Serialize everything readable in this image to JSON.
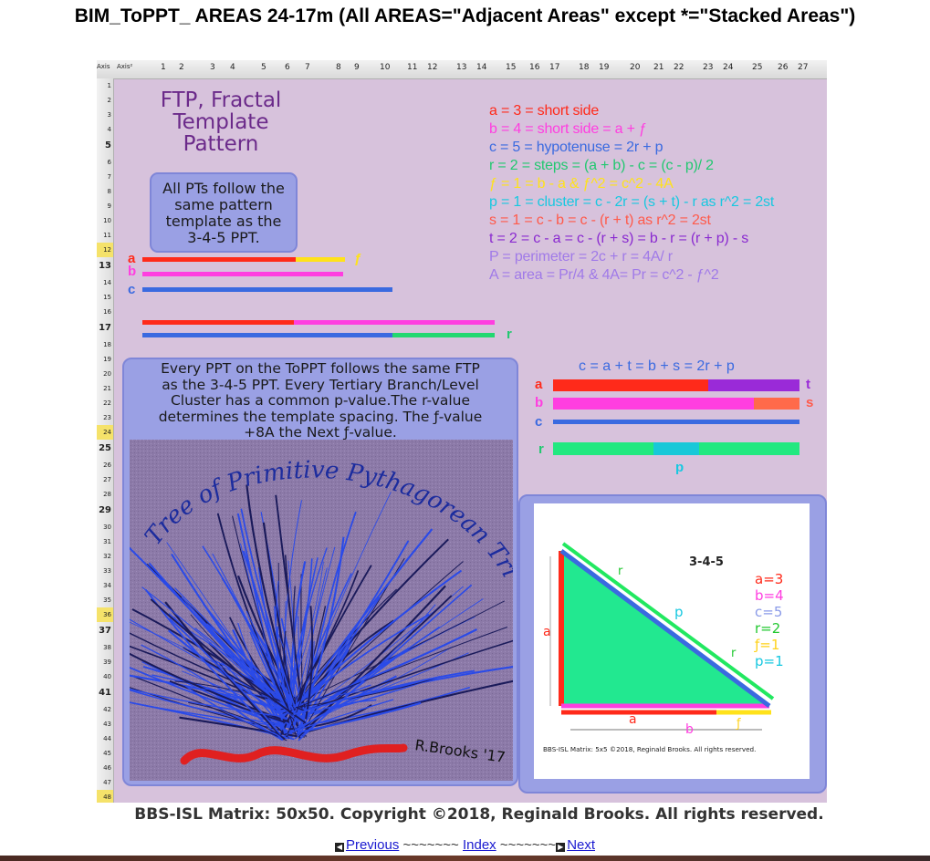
{
  "page_title": "BIM_ToPPT_ AREAS 24-17m (All AREAS=\"Adjacent Areas\" except *=\"Stacked Areas\")",
  "spreadsheet": {
    "col_headers": [
      "Axis",
      "Axis²",
      "1",
      "2",
      "3",
      "4",
      "5",
      "6",
      "7",
      "8",
      "9",
      "10",
      "11",
      "12",
      "13",
      "14",
      "15",
      "16",
      "17",
      "18",
      "19",
      "20",
      "21",
      "22",
      "23",
      "24",
      "25",
      "26",
      "27"
    ],
    "row_headers": [
      "1",
      "2",
      "3",
      "4",
      "5",
      "6",
      "7",
      "8",
      "9",
      "10",
      "11",
      "12",
      "13",
      "14",
      "15",
      "16",
      "17",
      "18",
      "19",
      "20",
      "21",
      "22",
      "23",
      "24",
      "25",
      "26",
      "27",
      "28",
      "29",
      "30",
      "31",
      "32",
      "33",
      "34",
      "35",
      "36",
      "37",
      "38",
      "39",
      "40",
      "41",
      "42",
      "43",
      "44",
      "45",
      "46",
      "47",
      "48"
    ]
  },
  "ftp_title": [
    "FTP, Fractal",
    "Template",
    "Pattern"
  ],
  "pt_box_text": [
    "All PTs  follow the",
    "same pattern",
    "template  as the",
    "3-4-5 PPT."
  ],
  "equations": [
    {
      "text": "a = 3 = short side",
      "color": "#ff2a1a"
    },
    {
      "text": "b = 4 = short side = a + ƒ",
      "color": "#ff3ee0"
    },
    {
      "text": "c = 5 = hypotenuse = 2r + p",
      "color": "#3a6ae0"
    },
    {
      "text": "r = 2 = steps = (a + b) - c = (c - p)/ 2",
      "color": "#22c870"
    },
    {
      "text": "ƒ = 1 = b - a  &  ƒ^2 = c^2 - 4A",
      "color": "#ffe21a"
    },
    {
      "text": "p = 1 = cluster = c - 2r = (s + t) - r  as r^2 = 2st",
      "color": "#18c8e0"
    },
    {
      "text": "s = 1 = c - b = c - (r + t)   as r^2 = 2st",
      "color": "#ff5a4a"
    },
    {
      "text": "t = 2 = c - a = c - (r + s) = b - r = (r + p) - s",
      "color": "#8a2ad0"
    },
    {
      "text": "P = perimeter = 2c + r = 4A/ r",
      "color": "#a07ae8"
    },
    {
      "text": "A = area = Pr/4 &  4A= Pr = c^2 - ƒ^2",
      "color": "#a07ae8"
    }
  ],
  "left_bar_labels": {
    "a": "a",
    "b": "b",
    "c": "c",
    "f": "ƒ",
    "r": "r"
  },
  "every_text": [
    "Every  PPT on the ToPPT  follows the same FTP",
    "as the 3-4-5 PPT. Every Tertiary Branch/Level",
    "Cluster has a common p-value.The r-value",
    "determines the template spacing. The ƒ-value",
    "+8A the Next ƒ-value."
  ],
  "cabt_title": "c = a + t = b + s = 2r + p",
  "cabt_labels": {
    "a": "a",
    "b": "b",
    "c": "c",
    "r": "r",
    "t": "t",
    "s": "s",
    "p": "p"
  },
  "tree_art": {
    "title": "Tree of Primitive Pythagorean Triples",
    "signature": "R.Brooks '17"
  },
  "triangle_diagram": {
    "heading": "3-4-5",
    "side_labels": {
      "a": "a",
      "b": "b",
      "r": "r",
      "p": "p",
      "f": "ƒ"
    },
    "values": [
      {
        "text": "a=3",
        "color": "#ff2a1a"
      },
      {
        "text": "b=4",
        "color": "#ff3ee0"
      },
      {
        "text": "c=5",
        "color": "#8a9ae8"
      },
      {
        "text": "r=2",
        "color": "#22c830"
      },
      {
        "text": "ƒ=1",
        "color": "#ffd21a"
      },
      {
        "text": "p=1",
        "color": "#18c8e0"
      }
    ],
    "caption": "BBS-ISL Matrix: 5x5  ©2018, Reginald Brooks. All rights reserved."
  },
  "footer": "BBS-ISL Matrix: 50x50. Copyright ©2018, Reginald Brooks. All rights reserved.",
  "nav": {
    "previous": "Previous",
    "sep1": "~~~~~~~",
    "index": "Index",
    "sep2": "~~~~~~~",
    "next": "Next"
  }
}
